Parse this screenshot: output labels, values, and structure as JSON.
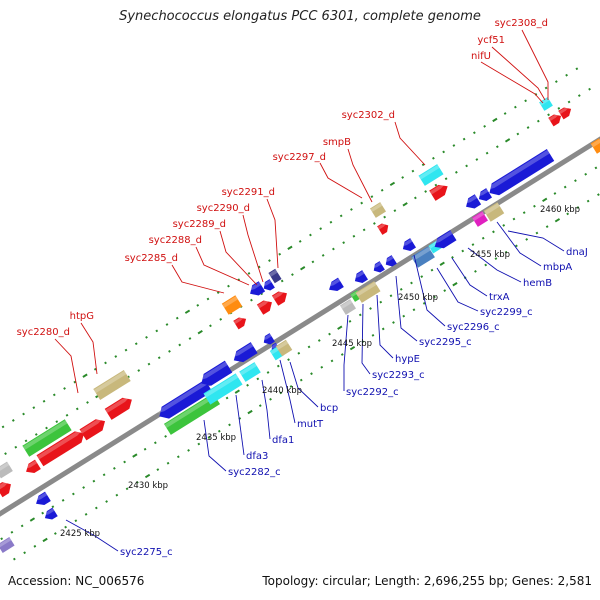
{
  "title": "Synechococcus elongatus PCC 6301, complete genome",
  "accession": "Accession: NC_006576",
  "topology": "Topology: circular; Length: 2,696,255 bp; Genes: 2,581",
  "colors": {
    "red": "#e8141a",
    "blue": "#1a1ad6",
    "green": "#3cc43c",
    "tan": "#c8b87c",
    "cyan": "#2fe6f0",
    "orange": "#ff8c10",
    "magenta": "#e020c0",
    "steel": "#4a80c0",
    "gray": "#bbbbbb",
    "navy": "#3a3a8a",
    "purple": "#8a7ac8",
    "backbone": "#8a8a8a",
    "tick": "#2a8a2a"
  },
  "scale_labels": [
    "2425 kbp",
    "2430 kbp",
    "2435 kbp",
    "2440 kbp",
    "2445 kbp",
    "2450 kbp",
    "2455 kbp",
    "2460 kbp"
  ],
  "red_labels": [
    "syc2308_d",
    "ycf51",
    "nifU",
    "syc2302_d",
    "smpB",
    "syc2297_d",
    "syc2291_d",
    "syc2290_d",
    "syc2289_d",
    "syc2288_d",
    "syc2285_d",
    "htpG",
    "syc2280_d"
  ],
  "blue_labels": [
    "dnaJ",
    "mbpA",
    "hemB",
    "trxA",
    "syc2299_c",
    "syc2296_c",
    "syc2295_c",
    "hypE",
    "syc2293_c",
    "syc2292_c",
    "bcp",
    "mutT",
    "dfa1",
    "dfa3",
    "syc2282_c",
    "syc2275_c"
  ]
}
